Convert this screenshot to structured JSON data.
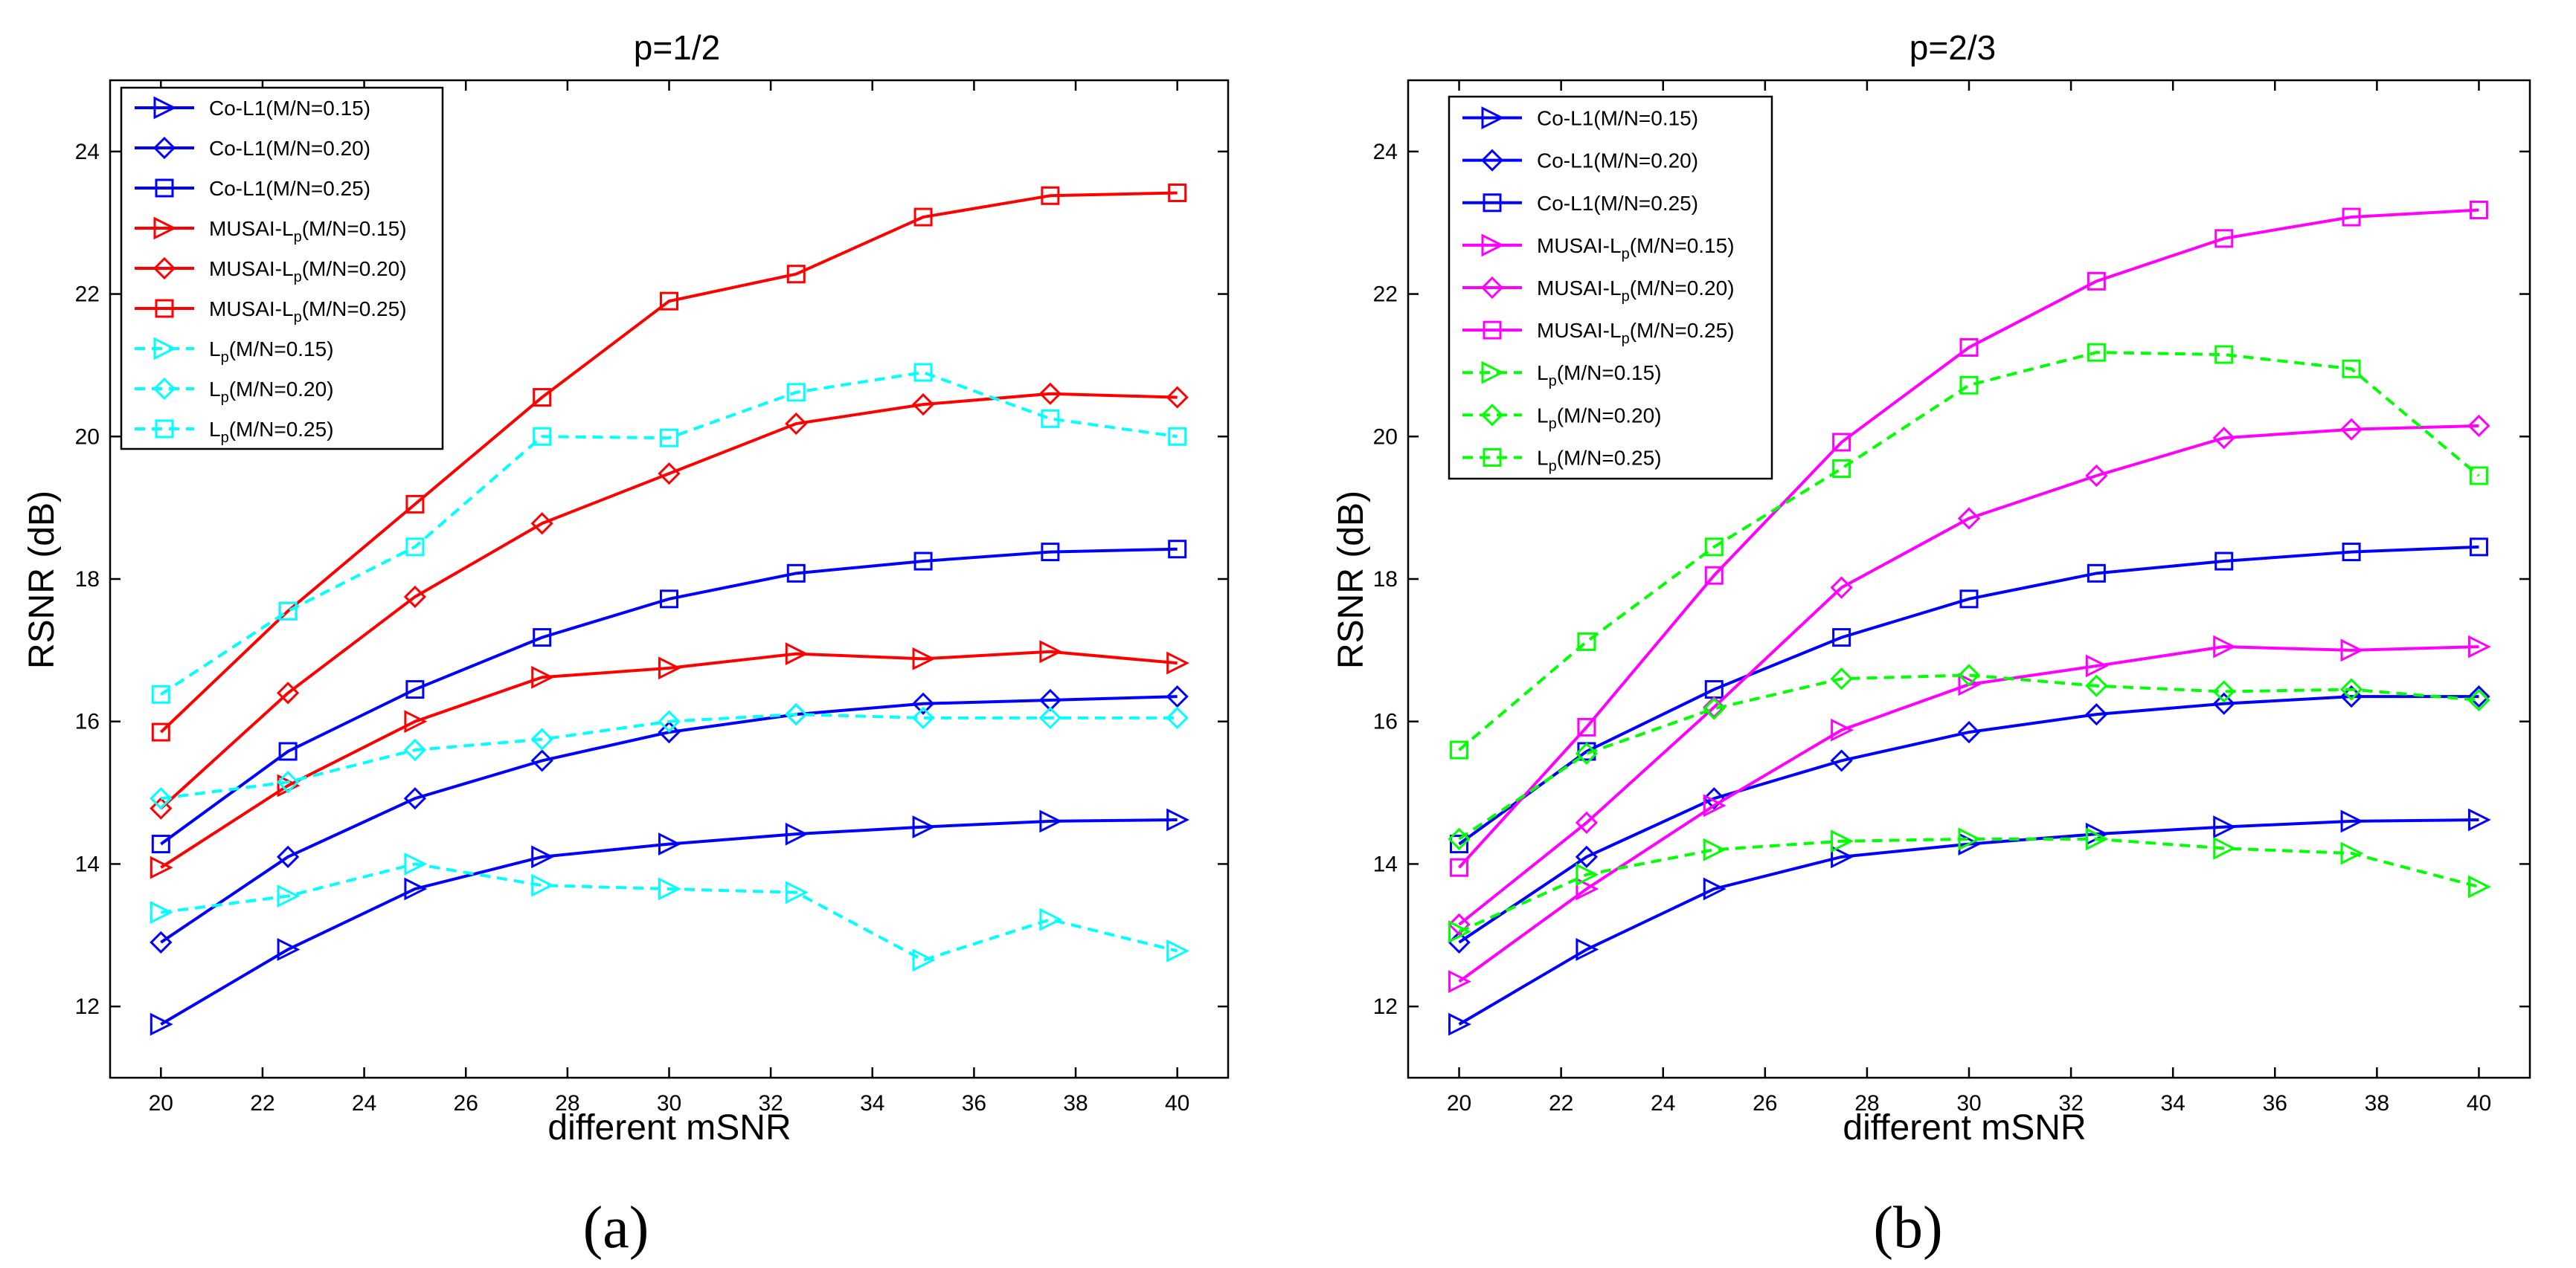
{
  "chart_data": [
    {
      "type": "line",
      "title": "p=1/2",
      "xlabel": "different mSNR",
      "ylabel": "RSNR (dB)",
      "xlim": [
        19,
        41
      ],
      "ylim": [
        11,
        25
      ],
      "xticks": [
        20,
        22,
        24,
        26,
        28,
        30,
        32,
        34,
        36,
        38,
        40
      ],
      "yticks": [
        12,
        14,
        16,
        18,
        20,
        22,
        24
      ],
      "grid": false,
      "legend_position": "top-left",
      "subfigure": "(a)",
      "x": [
        20,
        22.5,
        25,
        27.5,
        30,
        32.5,
        35,
        37.5,
        40
      ],
      "series": [
        {
          "name": "Co-L1(M/N=0.15)",
          "color": "#0000ff",
          "dash": "solid",
          "marker": "triangle-right",
          "values": [
            11.75,
            12.8,
            13.65,
            14.1,
            14.28,
            14.42,
            14.52,
            14.6,
            14.62
          ]
        },
        {
          "name": "Co-L1(M/N=0.20)",
          "color": "#0000ff",
          "dash": "solid",
          "marker": "diamond",
          "values": [
            12.9,
            14.1,
            14.92,
            15.45,
            15.85,
            16.1,
            16.25,
            16.3,
            16.35
          ]
        },
        {
          "name": "Co-L1(M/N=0.25)",
          "color": "#0000ff",
          "dash": "solid",
          "marker": "square",
          "values": [
            14.28,
            15.58,
            16.45,
            17.18,
            17.72,
            18.08,
            18.25,
            18.38,
            18.42
          ]
        },
        {
          "name": "MUSAI-Lp(M/N=0.15)",
          "name_base": "MUSAI-L",
          "name_sub": "p",
          "name_rest": "(M/N=0.15)",
          "color": "#ff0000",
          "dash": "solid",
          "marker": "triangle-right",
          "values": [
            13.95,
            15.1,
            16.0,
            16.62,
            16.75,
            16.95,
            16.88,
            16.98,
            16.82
          ]
        },
        {
          "name": "MUSAI-Lp(M/N=0.20)",
          "name_base": "MUSAI-L",
          "name_sub": "p",
          "name_rest": "(M/N=0.20)",
          "color": "#ff0000",
          "dash": "solid",
          "marker": "diamond",
          "values": [
            14.78,
            16.4,
            17.75,
            18.78,
            19.48,
            20.18,
            20.45,
            20.6,
            20.55
          ]
        },
        {
          "name": "MUSAI-Lp(M/N=0.25)",
          "name_base": "MUSAI-L",
          "name_sub": "p",
          "name_rest": "(M/N=0.25)",
          "color": "#ff0000",
          "dash": "solid",
          "marker": "square",
          "values": [
            15.85,
            17.55,
            19.05,
            20.55,
            21.9,
            22.28,
            23.08,
            23.38,
            23.42
          ]
        },
        {
          "name": "Lp(M/N=0.15)",
          "name_base": "L",
          "name_sub": "p",
          "name_rest": "(M/N=0.15)",
          "color": "#00ffff",
          "dash": "dashed",
          "marker": "triangle-right",
          "values": [
            13.32,
            13.55,
            14.0,
            13.7,
            13.65,
            13.6,
            12.65,
            13.22,
            12.78
          ]
        },
        {
          "name": "Lp(M/N=0.20)",
          "name_base": "L",
          "name_sub": "p",
          "name_rest": "(M/N=0.20)",
          "color": "#00ffff",
          "dash": "dashed",
          "marker": "diamond",
          "values": [
            14.92,
            15.15,
            15.6,
            15.75,
            16.0,
            16.1,
            16.05,
            16.05,
            16.05
          ]
        },
        {
          "name": "Lp(M/N=0.25)",
          "name_base": "L",
          "name_sub": "p",
          "name_rest": "(M/N=0.25)",
          "color": "#00ffff",
          "dash": "dashed",
          "marker": "square",
          "values": [
            16.38,
            17.55,
            18.45,
            20.0,
            19.98,
            20.62,
            20.9,
            20.25,
            20.0
          ]
        }
      ]
    },
    {
      "type": "line",
      "title": "p=2/3",
      "xlabel": "different mSNR",
      "ylabel": "RSNR (dB)",
      "xlim": [
        19,
        41
      ],
      "ylim": [
        11,
        25
      ],
      "xticks": [
        20,
        22,
        24,
        26,
        28,
        30,
        32,
        34,
        36,
        38,
        40
      ],
      "yticks": [
        12,
        14,
        16,
        18,
        20,
        22,
        24
      ],
      "grid": false,
      "legend_position": "top-left",
      "subfigure": "(b)",
      "x": [
        20,
        22.5,
        25,
        27.5,
        30,
        32.5,
        35,
        37.5,
        40
      ],
      "series": [
        {
          "name": "Co-L1(M/N=0.15)",
          "color": "#0000ff",
          "dash": "solid",
          "marker": "triangle-right",
          "values": [
            11.75,
            12.8,
            13.65,
            14.1,
            14.28,
            14.42,
            14.52,
            14.6,
            14.62
          ]
        },
        {
          "name": "Co-L1(M/N=0.20)",
          "color": "#0000ff",
          "dash": "solid",
          "marker": "diamond",
          "values": [
            12.9,
            14.1,
            14.92,
            15.45,
            15.85,
            16.1,
            16.25,
            16.35,
            16.35
          ]
        },
        {
          "name": "Co-L1(M/N=0.25)",
          "color": "#0000ff",
          "dash": "solid",
          "marker": "square",
          "values": [
            14.28,
            15.58,
            16.45,
            17.18,
            17.72,
            18.08,
            18.25,
            18.38,
            18.45
          ]
        },
        {
          "name": "MUSAI-Lp(M/N=0.15)",
          "name_base": "MUSAI-L",
          "name_sub": "p",
          "name_rest": "(M/N=0.15)",
          "color": "#ff00ff",
          "dash": "solid",
          "marker": "triangle-right",
          "values": [
            12.35,
            13.65,
            14.82,
            15.88,
            16.52,
            16.78,
            17.05,
            17.0,
            17.05
          ]
        },
        {
          "name": "MUSAI-Lp(M/N=0.20)",
          "name_base": "MUSAI-L",
          "name_sub": "p",
          "name_rest": "(M/N=0.20)",
          "color": "#ff00ff",
          "dash": "solid",
          "marker": "diamond",
          "values": [
            13.15,
            14.58,
            16.2,
            17.88,
            18.85,
            19.45,
            19.98,
            20.1,
            20.15
          ]
        },
        {
          "name": "MUSAI-Lp(M/N=0.25)",
          "name_base": "MUSAI-L",
          "name_sub": "p",
          "name_rest": "(M/N=0.25)",
          "color": "#ff00ff",
          "dash": "solid",
          "marker": "square",
          "values": [
            13.95,
            15.92,
            18.05,
            19.92,
            21.25,
            22.18,
            22.78,
            23.08,
            23.18
          ]
        },
        {
          "name": "Lp(M/N=0.15)",
          "name_base": "L",
          "name_sub": "p",
          "name_rest": "(M/N=0.15)",
          "color": "#00ff00",
          "dash": "dashed",
          "marker": "triangle-right",
          "values": [
            13.05,
            13.85,
            14.2,
            14.32,
            14.35,
            14.35,
            14.22,
            14.15,
            13.68
          ]
        },
        {
          "name": "Lp(M/N=0.20)",
          "name_base": "L",
          "name_sub": "p",
          "name_rest": "(M/N=0.20)",
          "color": "#00ff00",
          "dash": "dashed",
          "marker": "diamond",
          "values": [
            14.35,
            15.55,
            16.18,
            16.6,
            16.65,
            16.5,
            16.42,
            16.45,
            16.3
          ]
        },
        {
          "name": "Lp(M/N=0.25)",
          "name_base": "L",
          "name_sub": "p",
          "name_rest": "(M/N=0.25)",
          "color": "#00ff00",
          "dash": "dashed",
          "marker": "square",
          "values": [
            15.6,
            17.12,
            18.45,
            19.55,
            20.72,
            21.18,
            21.15,
            20.95,
            19.45
          ]
        }
      ]
    }
  ]
}
